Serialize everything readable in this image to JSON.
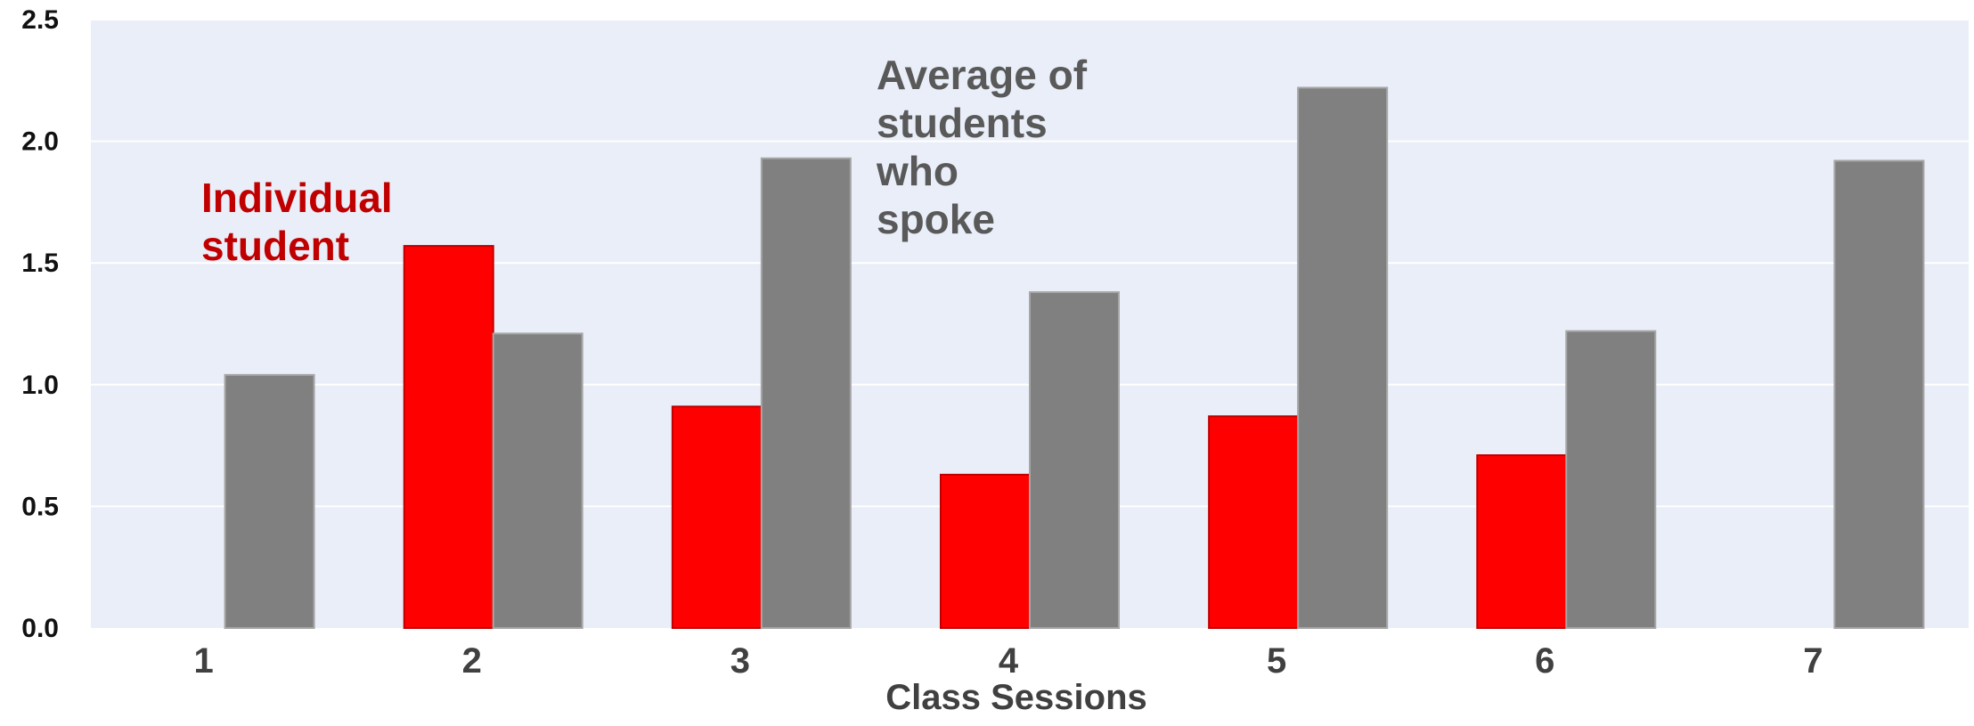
{
  "chart_data": {
    "type": "bar",
    "title": "",
    "xlabel": "Class Sessions",
    "ylabel": "",
    "categories": [
      "1",
      "2",
      "3",
      "4",
      "5",
      "6",
      "7"
    ],
    "ylim": [
      0,
      2.5
    ],
    "yticks": [
      "0.0",
      "0.5",
      "1.0",
      "1.5",
      "2.0",
      "2.5"
    ],
    "grid": true,
    "series": [
      {
        "name": "Individual student",
        "color": "#ff0000",
        "values": [
          null,
          1.57,
          0.91,
          0.63,
          0.87,
          0.71,
          null
        ]
      },
      {
        "name": "Average of students who spoke",
        "color": "#808080",
        "values": [
          1.04,
          1.21,
          1.93,
          1.38,
          2.22,
          1.22,
          1.92
        ]
      }
    ],
    "annotations": [
      {
        "series_index": 0,
        "lines": [
          "Individual",
          "student"
        ],
        "color": "#c00000"
      },
      {
        "series_index": 1,
        "lines": [
          "Average of",
          "students",
          "who",
          "spoke"
        ],
        "color": "#595959"
      }
    ],
    "colors": {
      "plot_background": "#e9eef8",
      "gridline": "#ffffff"
    }
  }
}
